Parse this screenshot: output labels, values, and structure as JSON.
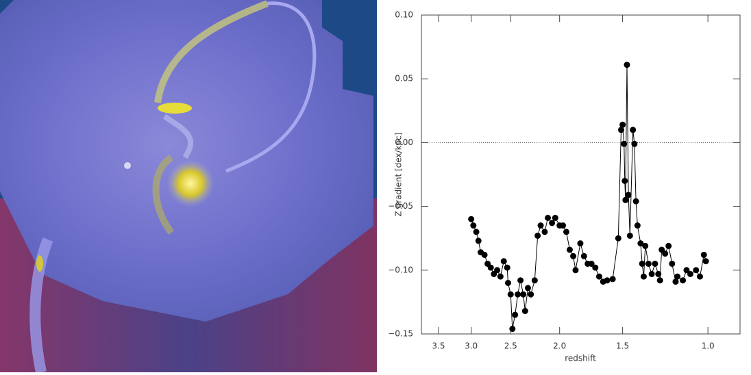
{
  "chart_data": {
    "type": "line",
    "xlabel": "redshift",
    "ylabel": "Z gradient [dex/kpc]",
    "x": [
      3.0,
      2.97,
      2.93,
      2.9,
      2.87,
      2.82,
      2.78,
      2.74,
      2.7,
      2.66,
      2.62,
      2.58,
      2.54,
      2.53,
      2.5,
      2.48,
      2.45,
      2.42,
      2.39,
      2.36,
      2.34,
      2.31,
      2.28,
      2.24,
      2.21,
      2.18,
      2.14,
      2.11,
      2.07,
      2.04,
      2.0,
      1.97,
      1.94,
      1.91,
      1.88,
      1.86,
      1.82,
      1.79,
      1.76,
      1.73,
      1.7,
      1.67,
      1.64,
      1.61,
      1.57,
      1.53,
      1.51,
      1.5,
      1.49,
      1.485,
      1.48,
      1.47,
      1.46,
      1.45,
      1.43,
      1.42,
      1.41,
      1.4,
      1.38,
      1.37,
      1.36,
      1.35,
      1.33,
      1.31,
      1.29,
      1.27,
      1.26,
      1.25,
      1.23,
      1.21,
      1.19,
      1.17,
      1.16,
      1.13,
      1.11,
      1.09,
      1.06,
      1.04,
      1.02,
      1.01
    ],
    "series": [
      {
        "name": "Z gradient",
        "color": "#000000",
        "values": [
          -0.06,
          -0.065,
          -0.07,
          -0.077,
          -0.086,
          -0.088,
          -0.095,
          -0.098,
          -0.103,
          -0.1,
          -0.105,
          -0.093,
          -0.098,
          -0.11,
          -0.119,
          -0.146,
          -0.135,
          -0.119,
          -0.108,
          -0.119,
          -0.132,
          -0.114,
          -0.119,
          -0.108,
          -0.073,
          -0.065,
          -0.07,
          -0.059,
          -0.063,
          -0.059,
          -0.065,
          -0.065,
          -0.07,
          -0.084,
          -0.089,
          -0.1,
          -0.079,
          -0.089,
          -0.095,
          -0.095,
          -0.098,
          -0.105,
          -0.109,
          -0.108,
          -0.107,
          -0.075,
          0.01,
          0.014,
          -0.001,
          -0.03,
          -0.045,
          0.061,
          -0.041,
          -0.073,
          0.01,
          -0.001,
          -0.046,
          -0.065,
          -0.079,
          -0.095,
          -0.105,
          -0.081,
          -0.095,
          -0.103,
          -0.095,
          -0.103,
          -0.108,
          -0.084,
          -0.087,
          -0.081,
          -0.095,
          -0.109,
          -0.105,
          -0.108,
          -0.1,
          -0.103,
          -0.1,
          -0.105,
          -0.088,
          -0.093
        ]
      }
    ],
    "xlim": [
      3.8,
      0.85
    ],
    "xticks": [
      {
        "value": 3.5,
        "label": "3.5"
      },
      {
        "value": 3.0,
        "label": "3.0"
      },
      {
        "value": 2.5,
        "label": "2.5"
      },
      {
        "value": 2.0,
        "label": "2.0"
      },
      {
        "value": 1.5,
        "label": "1.5"
      },
      {
        "value": 1.0,
        "label": "1.0"
      }
    ],
    "ylim": [
      -0.15,
      0.1
    ],
    "yticks": [
      {
        "value": -0.15,
        "label": "−0.15"
      },
      {
        "value": -0.1,
        "label": "−0.10"
      },
      {
        "value": -0.05,
        "label": "−0.05"
      },
      {
        "value": 0,
        "label": "0.00"
      },
      {
        "value": 0.05,
        "label": "0.05"
      },
      {
        "value": 0.1,
        "label": "0.10"
      }
    ]
  }
}
